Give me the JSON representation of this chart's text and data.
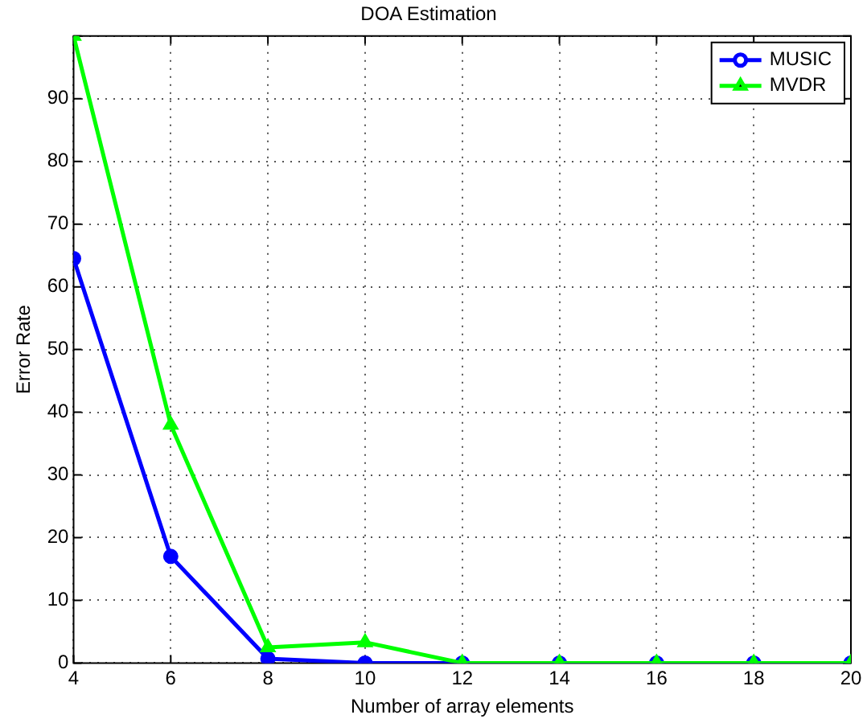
{
  "chart_data": {
    "type": "line",
    "title": "DOA Estimation",
    "xlabel": "Number of array elements",
    "ylabel": "Error Rate",
    "x": [
      4,
      6,
      8,
      10,
      12,
      14,
      16,
      18,
      20
    ],
    "series": [
      {
        "name": "MUSIC",
        "color": "#0000ff",
        "marker": "circle",
        "values": [
          64.5,
          17,
          0.7,
          0,
          0,
          0,
          0,
          0,
          0
        ]
      },
      {
        "name": "MVDR",
        "color": "#00ff00",
        "marker": "triangle",
        "values": [
          100,
          38,
          2.5,
          3.3,
          0,
          0,
          0,
          0,
          0
        ]
      }
    ],
    "xlim": [
      4,
      20
    ],
    "xticks": [
      4,
      6,
      8,
      10,
      12,
      14,
      16,
      18,
      20
    ],
    "ylim": [
      0,
      100
    ],
    "yticks": [
      0,
      10,
      20,
      30,
      40,
      50,
      60,
      70,
      80,
      90,
      {
        "value": 100,
        "label": null
      }
    ],
    "grid": true,
    "legend": "top right",
    "line_style": "solid"
  }
}
